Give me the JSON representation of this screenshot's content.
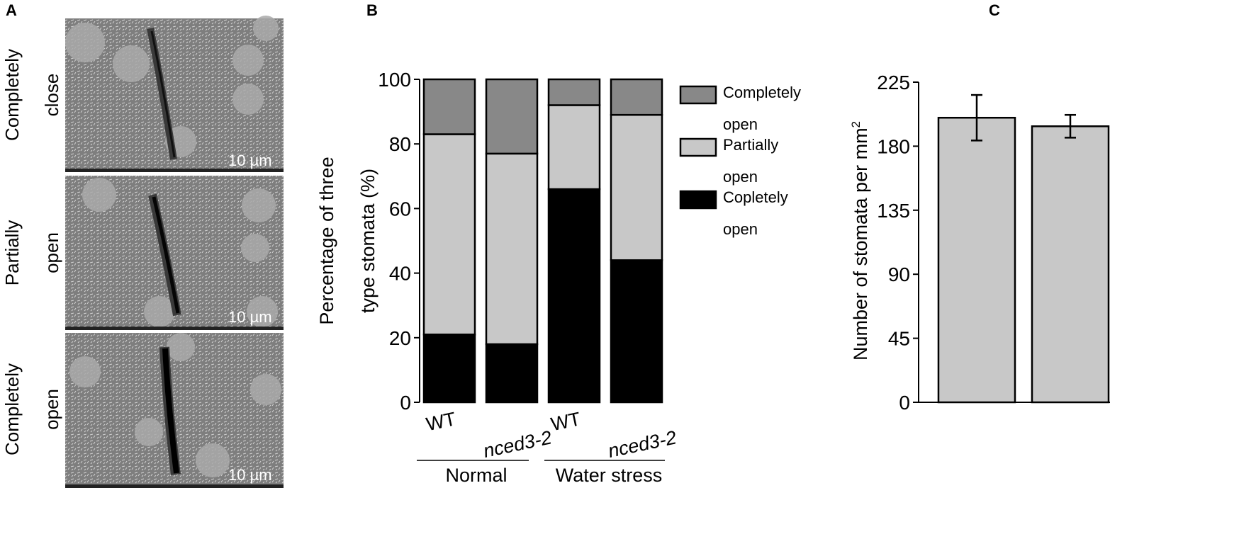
{
  "panel_letters": {
    "a": "A",
    "b": "B",
    "c": "C"
  },
  "panel_a": {
    "rows": [
      {
        "line1": "Completely",
        "line2": "close",
        "scale_bar": "10 µm"
      },
      {
        "line1": "Partially",
        "line2": "open",
        "scale_bar": "10 µm"
      },
      {
        "line1": "Completely",
        "line2": "open",
        "scale_bar": "10 µm"
      }
    ]
  },
  "chart_data": [
    {
      "type": "bar",
      "stacked": true,
      "ylabel_line1": "Percentage of three",
      "ylabel_line2": "type stomata (%)",
      "ylim": [
        0,
        100
      ],
      "yticks": [
        "0",
        "20",
        "40",
        "60",
        "80",
        "100"
      ],
      "categories": [
        "WT",
        "nced3-2",
        "WT",
        "nced3-2"
      ],
      "groups": [
        "Normal",
        "Water stress"
      ],
      "series": [
        {
          "name": "Copletely open",
          "name_line1": "Copletely",
          "name_line2": "open",
          "color": "#000000",
          "values": [
            21,
            18,
            66,
            44
          ]
        },
        {
          "name": "Partially open",
          "name_line1": "Partially",
          "name_line2": "open",
          "color": "#c8c8c8",
          "values": [
            62,
            59,
            26,
            45
          ]
        },
        {
          "name": "Completely open",
          "name_line1": "Completely",
          "name_line2": "open",
          "color": "#888888",
          "values": [
            17,
            23,
            8,
            11
          ]
        }
      ],
      "legend_position": "top-right"
    },
    {
      "type": "bar",
      "ylabel": "Number of stomata per mm²",
      "ylabel_main": "Number of stomata per mm",
      "ylabel_sup": "2",
      "ylim": [
        0,
        225
      ],
      "yticks": [
        "0",
        "45",
        "90",
        "135",
        "180",
        "225"
      ],
      "values": [
        200,
        194
      ],
      "errors": [
        16,
        8
      ],
      "color": "#c8c8c8"
    }
  ]
}
